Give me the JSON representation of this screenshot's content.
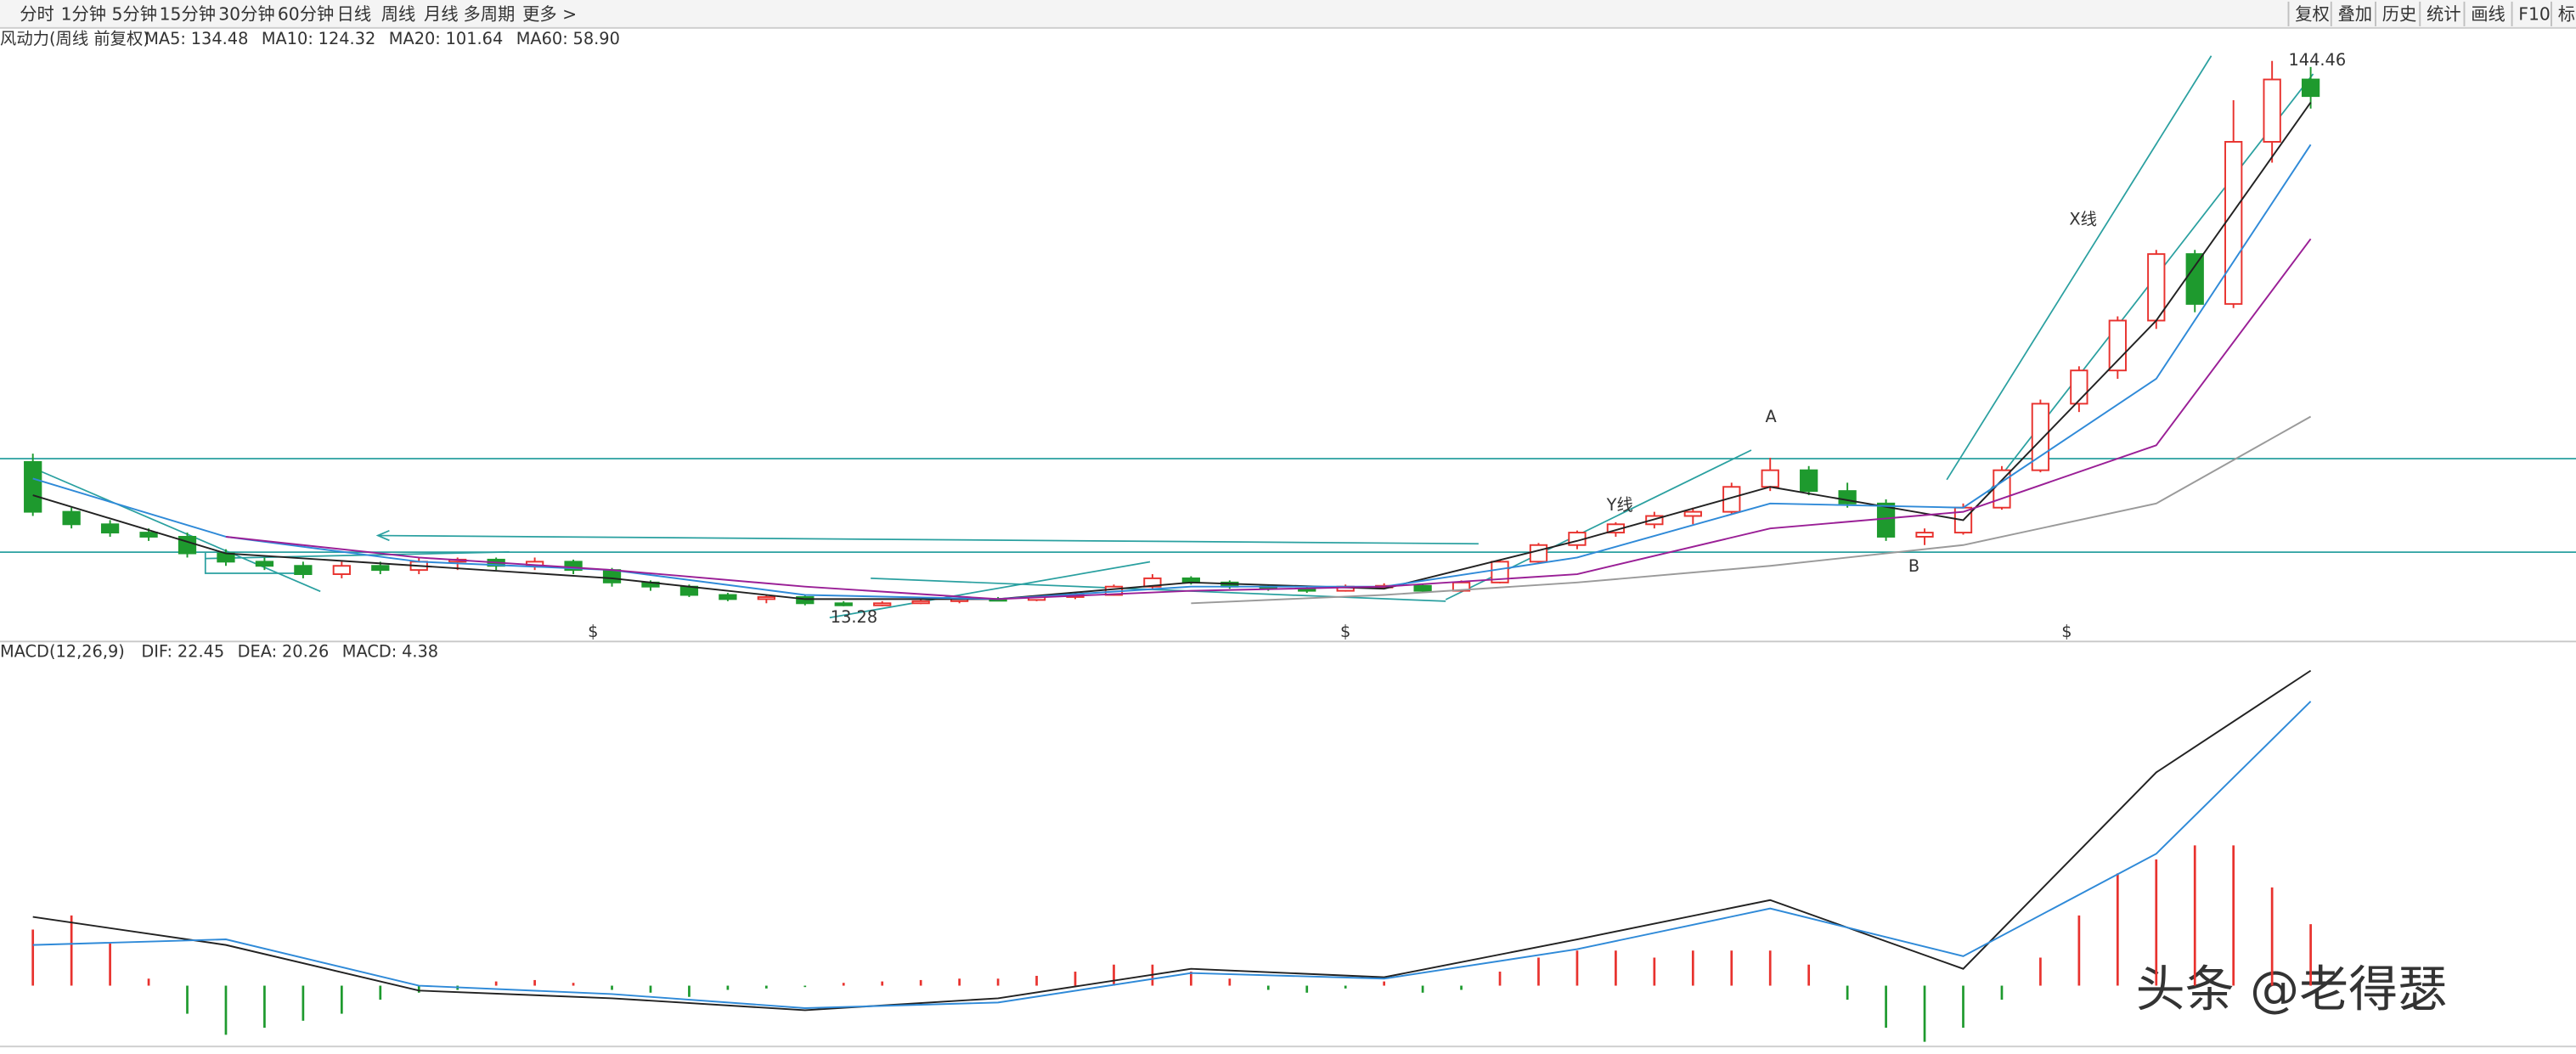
{
  "toolbar": {
    "left": [
      "分时",
      "1分钟",
      "5分钟",
      "15分钟",
      "30分钟",
      "60分钟",
      "日线",
      "周线",
      "月线",
      "多周期",
      "更多 >"
    ],
    "active_index": 7,
    "right": [
      "复权",
      "叠加",
      "历史",
      "统计",
      "画线",
      "F10",
      "标"
    ]
  },
  "watermark": "头条 @老得瑟",
  "chart_data": [
    {
      "type": "candlestick",
      "title": "风动力(周线 前复权)",
      "up_color": "#e8322e",
      "down_color": "#1e9a2e",
      "ylim": [
        5,
        152
      ],
      "ohlc": [
        [
          48,
          50,
          35,
          36
        ],
        [
          36,
          37,
          32,
          33
        ],
        [
          33,
          34,
          30,
          31
        ],
        [
          31,
          32,
          29,
          30
        ],
        [
          30,
          31,
          25,
          26
        ],
        [
          26,
          27,
          23,
          24
        ],
        [
          24,
          25,
          22,
          23
        ],
        [
          23,
          24,
          20,
          21
        ],
        [
          21,
          24,
          20,
          23
        ],
        [
          23,
          24,
          21,
          22
        ],
        [
          22,
          25,
          21,
          24
        ],
        [
          24,
          25,
          22,
          24.5
        ],
        [
          24.5,
          25,
          22,
          23
        ],
        [
          23,
          25,
          22,
          24
        ],
        [
          24,
          24.5,
          21,
          22
        ],
        [
          22,
          22.5,
          18,
          19
        ],
        [
          19,
          19.5,
          17,
          18
        ],
        [
          18,
          18.5,
          15.5,
          16
        ],
        [
          16,
          16.5,
          14.5,
          15
        ],
        [
          15,
          16,
          14,
          15.5
        ],
        [
          15.5,
          16,
          13.5,
          14
        ],
        [
          14,
          14.5,
          13.28,
          13.5
        ],
        [
          13.5,
          14.5,
          13.3,
          14
        ],
        [
          14,
          15,
          13.8,
          14.5
        ],
        [
          14.5,
          15.5,
          14,
          15
        ],
        [
          15,
          15.5,
          14.5,
          14.8
        ],
        [
          14.8,
          16,
          14.5,
          15.5
        ],
        [
          15.5,
          16.5,
          15,
          16
        ],
        [
          16,
          18.5,
          15.8,
          18
        ],
        [
          18,
          21,
          17.5,
          20
        ],
        [
          20,
          20.5,
          18.5,
          19
        ],
        [
          19,
          19.5,
          17.5,
          18
        ],
        [
          18,
          18.5,
          17,
          17.5
        ],
        [
          17.5,
          18,
          16.5,
          17
        ],
        [
          17,
          18.5,
          16.8,
          18
        ],
        [
          18,
          18.8,
          17.5,
          18.2
        ],
        [
          18.2,
          18.5,
          16.5,
          17
        ],
        [
          17,
          19.5,
          16.8,
          19
        ],
        [
          19,
          24.5,
          18.8,
          24
        ],
        [
          24,
          28.5,
          23.5,
          28
        ],
        [
          28,
          31.5,
          27,
          31
        ],
        [
          31,
          33.5,
          30,
          33
        ],
        [
          33,
          36,
          32,
          35
        ],
        [
          35,
          37,
          33,
          36
        ],
        [
          36,
          43,
          35.5,
          42
        ],
        [
          42,
          49,
          41,
          46
        ],
        [
          46,
          47,
          40,
          41
        ],
        [
          41,
          43,
          37,
          38
        ],
        [
          38,
          39,
          29,
          30
        ],
        [
          30,
          32,
          28,
          31
        ],
        [
          31,
          38,
          30.5,
          37
        ],
        [
          37,
          47,
          36.5,
          46
        ],
        [
          46,
          63,
          45.5,
          62
        ],
        [
          62,
          71,
          60,
          70
        ],
        [
          70,
          83,
          68,
          82
        ],
        [
          82,
          99,
          80,
          98
        ],
        [
          98,
          99,
          84,
          86
        ],
        [
          86,
          135,
          85,
          125
        ],
        [
          125,
          144.46,
          120,
          140
        ],
        [
          140,
          143,
          133,
          136
        ]
      ],
      "series": [
        {
          "name": "MA5:",
          "color": "#222222",
          "x": [
            0,
            5,
            10,
            15,
            20,
            25,
            30,
            35,
            40,
            45,
            50,
            55,
            59
          ],
          "values": [
            40,
            26,
            23,
            20,
            15,
            15,
            19,
            17.5,
            29,
            42,
            34,
            82,
            134.48
          ],
          "legend_value": 134.48
        },
        {
          "name": "MA10:",
          "color": "#2f8ad8",
          "x": [
            0,
            5,
            10,
            15,
            20,
            25,
            30,
            35,
            40,
            45,
            50,
            55,
            59
          ],
          "values": [
            44,
            30,
            24,
            22,
            16,
            15,
            18,
            18,
            25,
            38,
            37,
            68,
            124.32
          ],
          "legend_value": 124.32
        },
        {
          "name": "MA20:",
          "color": "#9a1f96",
          "x": [
            0,
            5,
            10,
            15,
            20,
            25,
            30,
            35,
            40,
            45,
            50,
            55,
            59
          ],
          "values": [
            null,
            30,
            25,
            22,
            18,
            15,
            17,
            18,
            21,
            32,
            36,
            52,
            101.64
          ],
          "legend_value": 101.64
        },
        {
          "name": "MA60:",
          "color": "#9a9a9a",
          "x": [
            0,
            5,
            10,
            15,
            20,
            25,
            30,
            35,
            40,
            45,
            50,
            55,
            59
          ],
          "values": [
            null,
            null,
            null,
            null,
            null,
            null,
            14,
            16,
            19,
            23,
            28,
            38,
            58.9
          ],
          "legend_value": {
            "value": 58.9,
            "label": "58.90"
          }
        }
      ],
      "hlines": [
        48.8,
        26.3
      ],
      "low": 13.28,
      "high": 144.46,
      "annotations": [
        "A",
        "B",
        "X线",
        "Y线",
        "$",
        "$",
        "$"
      ]
    },
    {
      "type": "macd",
      "title": "MACD(12,26,9)",
      "ylim": [
        -4.8,
        24
      ],
      "up_color": "#e8322e",
      "down_color": "#1e9a2e",
      "histogram": [
        4,
        5,
        3,
        0.5,
        -2,
        -3.5,
        -3,
        -2.5,
        -2,
        -1,
        -0.5,
        -0.3,
        0.3,
        0.4,
        0.2,
        -0.3,
        -0.5,
        -0.8,
        -0.3,
        -0.2,
        -0.1,
        0.2,
        0.3,
        0.4,
        0.5,
        0.5,
        0.7,
        1,
        1.5,
        1.5,
        1,
        0.5,
        -0.3,
        -0.5,
        -0.2,
        0.3,
        -0.5,
        -0.3,
        1,
        2,
        2.5,
        2.5,
        2,
        2.5,
        2.5,
        2.5,
        1.5,
        -1,
        -3,
        -4,
        -3,
        -1,
        2,
        5,
        8,
        9,
        10,
        10,
        7,
        4.38
      ],
      "series": [
        {
          "name": "DIF:",
          "color": "#222222",
          "x": [
            0,
            5,
            10,
            15,
            20,
            25,
            30,
            35,
            40,
            45,
            50,
            55,
            59
          ],
          "values": [
            4.9,
            2.9,
            -0.35,
            -0.9,
            -1.75,
            -0.9,
            1.2,
            0.6,
            3.3,
            6.1,
            1.2,
            15.2,
            22.45
          ],
          "legend_value": 22.45
        },
        {
          "name": "DEA:",
          "color": "#2f8ad8",
          "x": [
            0,
            5,
            10,
            15,
            20,
            25,
            30,
            35,
            40,
            45,
            50,
            55,
            59
          ],
          "values": [
            2.9,
            3.3,
            0,
            -0.6,
            -1.6,
            -1.2,
            0.9,
            0.5,
            2.6,
            5.5,
            2.1,
            9.4,
            20.26
          ],
          "legend_value": 20.26
        },
        {
          "name": "MACD:",
          "color": "#9a1f96",
          "legend_value": 4.38
        }
      ]
    }
  ]
}
